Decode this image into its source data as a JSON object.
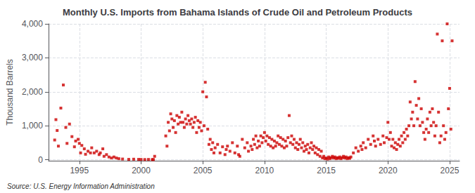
{
  "chart_data": {
    "type": "scatter",
    "title": "Monthly U.S. Imports from Bahama Islands of Crude Oil and Petroleum Products",
    "ylabel": "Thousand Barrels",
    "annotation": "Source: U.S. Energy Information Administration",
    "color": "#CC0000",
    "marker": "square",
    "grid": true,
    "xlim": [
      1992.5,
      2025.8
    ],
    "ylim": [
      -30,
      4000
    ],
    "xticks": [
      1995,
      2000,
      2005,
      2010,
      2015,
      2020,
      2025
    ],
    "yticks": [
      0,
      {
        "value": 1000,
        "label": "1,000"
      },
      {
        "value": 2000,
        "label": "2,000"
      },
      {
        "value": 3000,
        "label": "3,000"
      },
      {
        "value": 4000,
        "label": "4,000"
      }
    ],
    "x": [
      1993.0,
      1993.1,
      1993.2,
      1993.3,
      1993.5,
      1993.7,
      1993.9,
      1994.0,
      1994.2,
      1994.4,
      1994.6,
      1994.7,
      1994.9,
      1995.0,
      1995.1,
      1995.2,
      1995.4,
      1995.5,
      1995.7,
      1995.9,
      1996.0,
      1996.2,
      1996.4,
      1996.6,
      1996.7,
      1996.9,
      1997.0,
      1997.2,
      1997.4,
      1997.6,
      1997.8,
      1998.0,
      1998.2,
      1998.5,
      1999.0,
      1999.4,
      1999.8,
      2000.0,
      2000.3,
      2000.6,
      2000.9,
      2001.0,
      2001.1,
      2002.0,
      2002.1,
      2002.2,
      2002.3,
      2002.4,
      2002.5,
      2002.6,
      2002.7,
      2002.8,
      2002.9,
      2003.0,
      2003.1,
      2003.2,
      2003.3,
      2003.4,
      2003.5,
      2003.6,
      2003.7,
      2003.8,
      2003.9,
      2004.0,
      2004.1,
      2004.2,
      2004.3,
      2004.4,
      2004.5,
      2004.6,
      2004.7,
      2004.8,
      2004.9,
      2005.0,
      2005.1,
      2005.2,
      2005.3,
      2005.4,
      2005.5,
      2005.6,
      2005.7,
      2005.8,
      2005.9,
      2006.0,
      2006.2,
      2006.4,
      2006.6,
      2006.8,
      2006.9,
      2007.0,
      2007.2,
      2007.4,
      2007.6,
      2007.8,
      2007.9,
      2008.0,
      2008.2,
      2008.4,
      2008.6,
      2008.7,
      2008.9,
      2009.0,
      2009.1,
      2009.2,
      2009.3,
      2009.4,
      2009.5,
      2009.6,
      2009.7,
      2009.8,
      2009.9,
      2010.0,
      2010.1,
      2010.2,
      2010.3,
      2010.4,
      2010.5,
      2010.6,
      2010.7,
      2010.8,
      2010.9,
      2011.0,
      2011.1,
      2011.2,
      2011.3,
      2011.4,
      2011.5,
      2011.6,
      2011.7,
      2011.8,
      2011.9,
      2012.0,
      2012.1,
      2012.2,
      2012.3,
      2012.4,
      2012.5,
      2012.6,
      2012.7,
      2012.8,
      2012.9,
      2013.0,
      2013.1,
      2013.2,
      2013.3,
      2013.4,
      2013.5,
      2013.6,
      2013.7,
      2013.8,
      2013.9,
      2014.0,
      2014.1,
      2014.2,
      2014.3,
      2014.4,
      2014.5,
      2014.6,
      2014.7,
      2014.8,
      2014.9,
      2015.0,
      2015.1,
      2015.2,
      2015.3,
      2015.4,
      2015.5,
      2015.6,
      2015.7,
      2015.8,
      2015.9,
      2016.0,
      2016.1,
      2016.2,
      2016.3,
      2016.4,
      2016.5,
      2016.6,
      2016.7,
      2016.8,
      2016.9,
      2017.0,
      2017.2,
      2017.4,
      2017.6,
      2017.8,
      2017.9,
      2018.0,
      2018.2,
      2018.4,
      2018.6,
      2018.8,
      2018.9,
      2019.0,
      2019.2,
      2019.4,
      2019.6,
      2019.7,
      2019.9,
      2020.0,
      2020.1,
      2020.2,
      2020.3,
      2020.4,
      2020.5,
      2020.6,
      2020.7,
      2020.8,
      2020.9,
      2021.0,
      2021.1,
      2021.2,
      2021.3,
      2021.4,
      2021.5,
      2021.6,
      2021.7,
      2021.8,
      2021.9,
      2022.0,
      2022.1,
      2022.2,
      2022.3,
      2022.4,
      2022.5,
      2022.6,
      2022.7,
      2022.8,
      2022.9,
      2023.0,
      2023.1,
      2023.2,
      2023.3,
      2023.4,
      2023.5,
      2023.6,
      2023.7,
      2023.8,
      2023.9,
      2024.0,
      2024.1,
      2024.2,
      2024.3,
      2024.4,
      2024.5,
      2024.6,
      2024.7,
      2024.8,
      2024.9,
      2025.0,
      2025.1,
      2025.2
    ],
    "values": [
      580,
      1180,
      860,
      400,
      1520,
      2200,
      950,
      480,
      1050,
      680,
      380,
      550,
      600,
      480,
      200,
      420,
      320,
      160,
      250,
      200,
      350,
      200,
      250,
      150,
      200,
      320,
      100,
      150,
      80,
      50,
      80,
      50,
      30,
      20,
      10,
      15,
      10,
      8,
      5,
      8,
      5,
      5,
      100,
      700,
      400,
      1100,
      850,
      1350,
      1200,
      950,
      1150,
      800,
      1300,
      1050,
      1250,
      1100,
      1400,
      1100,
      950,
      1200,
      1050,
      1300,
      1150,
      1050,
      1200,
      950,
      1100,
      1250,
      800,
      1150,
      950,
      1100,
      850,
      2000,
      1000,
      2280,
      1850,
      900,
      450,
      600,
      300,
      500,
      200,
      350,
      450,
      200,
      380,
      150,
      300,
      400,
      250,
      500,
      200,
      400,
      150,
      100,
      600,
      350,
      500,
      250,
      400,
      300,
      600,
      450,
      700,
      350,
      550,
      400,
      700,
      500,
      650,
      800,
      550,
      700,
      450,
      650,
      400,
      600,
      350,
      550,
      400,
      500,
      700,
      450,
      650,
      400,
      600,
      350,
      550,
      400,
      650,
      1300,
      500,
      700,
      450,
      600,
      350,
      500,
      300,
      450,
      600,
      350,
      500,
      250,
      400,
      300,
      450,
      200,
      350,
      500,
      300,
      400,
      200,
      350,
      150,
      300,
      100,
      250,
      50,
      100,
      30,
      50,
      20,
      80,
      30,
      60,
      100,
      50,
      80,
      30,
      60,
      40,
      80,
      30,
      60,
      100,
      50,
      80,
      30,
      60,
      40,
      80,
      200,
      350,
      250,
      400,
      300,
      500,
      350,
      600,
      450,
      700,
      550,
      400,
      600,
      450,
      700,
      500,
      650,
      1100,
      600,
      800,
      400,
      600,
      350,
      500,
      300,
      450,
      600,
      400,
      700,
      500,
      800,
      600,
      900,
      700,
      1000,
      1700,
      1200,
      1400,
      1000,
      2300,
      1600,
      1200,
      1800,
      1000,
      1500,
      1100,
      800,
      600,
      900,
      1200,
      800,
      1400,
      1000,
      1500,
      1100,
      700,
      1000,
      3700,
      1400,
      500,
      700,
      3500,
      1000,
      600,
      800,
      4000,
      1500,
      2100,
      900,
      3500
    ]
  }
}
